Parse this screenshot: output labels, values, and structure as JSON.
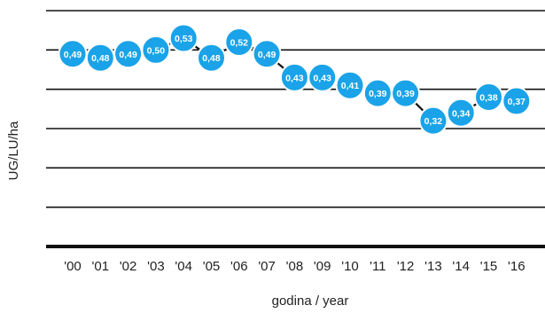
{
  "chart_data": {
    "type": "line",
    "categories": [
      "'00",
      "'01",
      "'02",
      "'03",
      "'04",
      "'05",
      "'06",
      "'07",
      "'08",
      "'09",
      "'10",
      "'11",
      "'12",
      "'13",
      "'14",
      "'15",
      "'16"
    ],
    "values": [
      0.49,
      0.48,
      0.49,
      0.5,
      0.53,
      0.48,
      0.52,
      0.49,
      0.43,
      0.43,
      0.41,
      0.39,
      0.39,
      0.32,
      0.34,
      0.38,
      0.37
    ],
    "data_labels": [
      "0,49",
      "0,48",
      "0,49",
      "0,50",
      "0,53",
      "0,48",
      "0,52",
      "0,49",
      "0,43",
      "0,43",
      "0,41",
      "0,39",
      "0,39",
      "0,32",
      "0,34",
      "0,38",
      "0,37"
    ],
    "xlabel": "godina / year",
    "ylabel": "UG/LU/ha",
    "ylim": [
      0,
      0.6
    ],
    "grid": true,
    "marker_color": "#1aa3e8",
    "line_color": "#111111"
  }
}
